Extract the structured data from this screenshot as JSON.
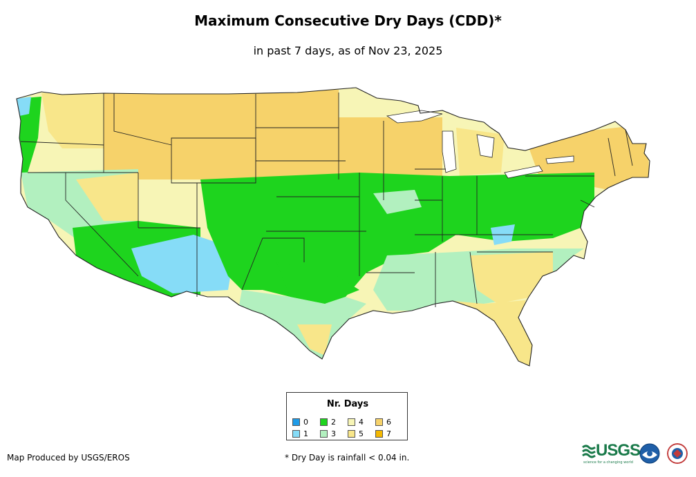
{
  "title": "Maximum Consecutive Dry Days (CDD)*",
  "subtitle": "in past 7 days, as of Nov 23, 2025",
  "legend": {
    "title": "Nr. Days",
    "items": [
      {
        "label": "0",
        "color": "#1e9be8"
      },
      {
        "label": "2",
        "color": "#1ed41e"
      },
      {
        "label": "4",
        "color": "#f7f5b6"
      },
      {
        "label": "6",
        "color": "#f6d26a"
      },
      {
        "label": "1",
        "color": "#86dcf7"
      },
      {
        "label": "3",
        "color": "#b2f0bf"
      },
      {
        "label": "5",
        "color": "#f8e68a"
      },
      {
        "label": "7",
        "color": "#f4b800"
      }
    ]
  },
  "credit": "Map Produced by USGS/EROS",
  "footnote": "* Dry Day is rainfall < 0.04 in.",
  "logos": {
    "usgs": "USGS",
    "usgs_tagline": "science for a changing world",
    "noaa": "NOAA",
    "nws": "NWS"
  },
  "colors": {
    "water": "#ffffff",
    "border": "#222222",
    "level_0": "#1e9be8",
    "level_1": "#86dcf7",
    "level_2": "#1ed41e",
    "level_3": "#b2f0bf",
    "level_4": "#f7f5b6",
    "level_5": "#f8e68a",
    "level_6": "#f6d26a",
    "level_7": "#f4b800"
  }
}
